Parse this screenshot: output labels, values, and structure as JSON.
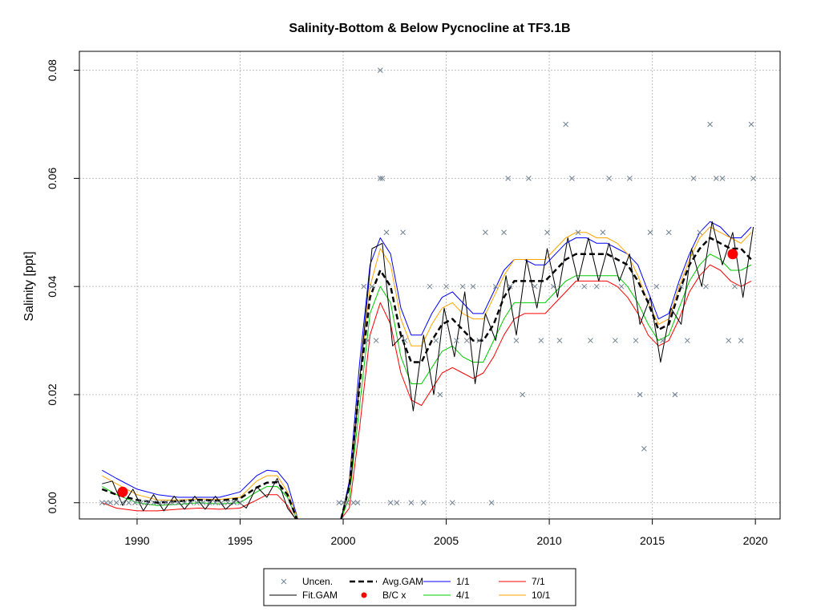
{
  "chart_data": {
    "type": "line",
    "title": "Salinity-Bottom & Below Pycnocline at TF3.1B",
    "ylabel": "Salinity [ppt]",
    "xlabel": "",
    "xlim": [
      1987.2,
      2021.2
    ],
    "ylim": [
      -0.003,
      0.0835
    ],
    "x_ticks": [
      1990,
      1995,
      2000,
      2005,
      2010,
      2015,
      2020
    ],
    "y_ticks": [
      0.0,
      0.02,
      0.04,
      0.06,
      0.08
    ],
    "y_tick_labels": [
      "0.00",
      "0.02",
      "0.04",
      "0.06",
      "0.08"
    ],
    "grid": true,
    "legend_position": "bottom-center",
    "legend": [
      {
        "label": "Uncen.",
        "symbol": "x",
        "color": "#708090"
      },
      {
        "label": "Avg.GAM",
        "symbol": "dashed-line",
        "color": "#000000"
      },
      {
        "label": "1/1",
        "symbol": "line",
        "color": "#0000ff"
      },
      {
        "label": "7/1",
        "symbol": "line",
        "color": "#ff0000"
      },
      {
        "label": "Fit.GAM",
        "symbol": "line",
        "color": "#000000"
      },
      {
        "label": "B/C x",
        "symbol": "dot",
        "color": "#ff0000"
      },
      {
        "label": "4/1",
        "symbol": "line",
        "color": "#00cc00"
      },
      {
        "label": "10/1",
        "symbol": "line",
        "color": "#ffa500"
      }
    ],
    "series": [
      {
        "name": "Avg.GAM",
        "color": "#000000",
        "x": [
          1988.3,
          1989.0,
          1990.0,
          1991.0,
          1992.0,
          1993.0,
          1994.0,
          1995.0,
          1995.8,
          1996.3,
          1996.8,
          1997.3,
          1997.8,
          1999.9,
          2000.3,
          2000.8,
          2001.3,
          2001.8,
          2002.3,
          2002.8,
          2003.3,
          2003.8,
          2004.3,
          2004.8,
          2005.3,
          2005.8,
          2006.3,
          2006.8,
          2007.3,
          2007.8,
          2008.3,
          2008.8,
          2009.3,
          2009.8,
          2010.3,
          2010.8,
          2011.3,
          2011.8,
          2012.3,
          2012.8,
          2013.3,
          2013.8,
          2014.3,
          2014.8,
          2015.3,
          2015.8,
          2016.3,
          2016.8,
          2017.3,
          2017.8,
          2018.3,
          2018.8,
          2019.3,
          2019.8
        ],
        "y": [
          0.0025,
          0.0015,
          0.0005,
          0.0,
          0.0003,
          0.0005,
          0.0004,
          0.0008,
          0.0028,
          0.0037,
          0.0038,
          0.0015,
          -0.0035,
          -0.003,
          0.003,
          0.022,
          0.038,
          0.043,
          0.04,
          0.031,
          0.026,
          0.026,
          0.03,
          0.033,
          0.034,
          0.032,
          0.03,
          0.03,
          0.033,
          0.038,
          0.041,
          0.041,
          0.041,
          0.041,
          0.043,
          0.045,
          0.046,
          0.046,
          0.046,
          0.046,
          0.045,
          0.044,
          0.041,
          0.037,
          0.032,
          0.033,
          0.039,
          0.044,
          0.047,
          0.049,
          0.048,
          0.047,
          0.047,
          0.045
        ]
      },
      {
        "name": "Fit.GAM",
        "color": "#000000",
        "x": [
          1988.3,
          1988.8,
          1989.3,
          1989.8,
          1990.3,
          1990.8,
          1991.3,
          1991.8,
          1992.3,
          1992.8,
          1993.3,
          1993.8,
          1994.3,
          1994.8,
          1995.3,
          1995.8,
          1996.3,
          1996.8,
          1997.3,
          1997.8,
          1999.9,
          2000.4,
          2000.9,
          2001.4,
          2001.9,
          2002.4,
          2002.9,
          2003.4,
          2003.9,
          2004.4,
          2004.9,
          2005.4,
          2005.9,
          2006.4,
          2006.9,
          2007.4,
          2007.9,
          2008.4,
          2008.9,
          2009.4,
          2009.9,
          2010.4,
          2010.9,
          2011.4,
          2011.9,
          2012.4,
          2012.9,
          2013.4,
          2013.9,
          2014.4,
          2014.9,
          2015.4,
          2015.9,
          2016.4,
          2016.9,
          2017.4,
          2017.9,
          2018.4,
          2018.9,
          2019.4,
          2019.9
        ],
        "y": [
          0.0035,
          0.004,
          -0.0005,
          0.0025,
          -0.0015,
          0.0015,
          -0.0015,
          0.0012,
          -0.0012,
          0.0012,
          -0.0012,
          0.0012,
          -0.0012,
          0.0005,
          -0.001,
          0.003,
          0.001,
          0.0045,
          -0.001,
          -0.0035,
          -0.003,
          0.005,
          0.027,
          0.047,
          0.048,
          0.029,
          0.031,
          0.017,
          0.031,
          0.02,
          0.036,
          0.027,
          0.039,
          0.022,
          0.035,
          0.03,
          0.042,
          0.031,
          0.045,
          0.036,
          0.047,
          0.038,
          0.049,
          0.041,
          0.049,
          0.041,
          0.048,
          0.041,
          0.046,
          0.033,
          0.038,
          0.026,
          0.036,
          0.033,
          0.047,
          0.04,
          0.052,
          0.044,
          0.05,
          0.038,
          0.051
        ]
      },
      {
        "name": "1/1",
        "color": "#0000ff",
        "x": [
          1988.3,
          1989.0,
          1990.0,
          1991.0,
          1992.0,
          1993.0,
          1994.0,
          1995.0,
          1995.8,
          1996.3,
          1996.8,
          1997.3,
          1997.8,
          1999.9,
          2000.3,
          2000.8,
          2001.3,
          2001.8,
          2002.3,
          2002.8,
          2003.3,
          2003.8,
          2004.3,
          2004.8,
          2005.3,
          2005.8,
          2006.3,
          2006.8,
          2007.3,
          2007.8,
          2008.3,
          2008.8,
          2009.3,
          2009.8,
          2010.3,
          2010.8,
          2011.3,
          2011.8,
          2012.3,
          2012.8,
          2013.3,
          2013.8,
          2014.3,
          2014.8,
          2015.3,
          2015.8,
          2016.3,
          2016.8,
          2017.3,
          2017.8,
          2018.3,
          2018.8,
          2019.3,
          2019.8
        ],
        "y": [
          0.006,
          0.0045,
          0.0025,
          0.0015,
          0.001,
          0.001,
          0.001,
          0.002,
          0.005,
          0.006,
          0.0058,
          0.0035,
          -0.003,
          -0.003,
          0.004,
          0.026,
          0.044,
          0.049,
          0.046,
          0.036,
          0.031,
          0.031,
          0.035,
          0.038,
          0.039,
          0.037,
          0.035,
          0.035,
          0.039,
          0.043,
          0.045,
          0.045,
          0.044,
          0.044,
          0.046,
          0.048,
          0.049,
          0.049,
          0.048,
          0.048,
          0.047,
          0.046,
          0.044,
          0.039,
          0.034,
          0.035,
          0.041,
          0.046,
          0.05,
          0.052,
          0.051,
          0.049,
          0.049,
          0.051
        ]
      },
      {
        "name": "4/1",
        "color": "#00cc00",
        "x": [
          1988.3,
          1989.0,
          1990.0,
          1991.0,
          1992.0,
          1993.0,
          1994.0,
          1995.0,
          1995.8,
          1996.3,
          1996.8,
          1997.3,
          1997.8,
          1999.9,
          2000.3,
          2000.8,
          2001.3,
          2001.8,
          2002.3,
          2002.8,
          2003.3,
          2003.8,
          2004.3,
          2004.8,
          2005.3,
          2005.8,
          2006.3,
          2006.8,
          2007.3,
          2007.8,
          2008.3,
          2008.8,
          2009.3,
          2009.8,
          2010.3,
          2010.8,
          2011.3,
          2011.8,
          2012.3,
          2012.8,
          2013.3,
          2013.8,
          2014.3,
          2014.8,
          2015.3,
          2015.8,
          2016.3,
          2016.8,
          2017.3,
          2017.8,
          2018.3,
          2018.8,
          2019.3,
          2019.8
        ],
        "y": [
          0.003,
          0.0015,
          0.0,
          -0.0005,
          -0.0003,
          0.0,
          -0.0002,
          0.0,
          0.002,
          0.003,
          0.003,
          0.001,
          -0.0035,
          -0.003,
          0.001,
          0.018,
          0.035,
          0.04,
          0.037,
          0.027,
          0.022,
          0.022,
          0.025,
          0.028,
          0.029,
          0.027,
          0.026,
          0.026,
          0.03,
          0.034,
          0.037,
          0.037,
          0.037,
          0.037,
          0.039,
          0.041,
          0.042,
          0.042,
          0.042,
          0.042,
          0.042,
          0.04,
          0.037,
          0.033,
          0.03,
          0.031,
          0.036,
          0.041,
          0.044,
          0.046,
          0.045,
          0.043,
          0.043,
          0.044
        ]
      },
      {
        "name": "7/1",
        "color": "#ff0000",
        "x": [
          1988.3,
          1989.0,
          1990.0,
          1991.0,
          1992.0,
          1993.0,
          1994.0,
          1995.0,
          1995.8,
          1996.3,
          1996.8,
          1997.3,
          1997.8,
          1999.9,
          2000.3,
          2000.8,
          2001.3,
          2001.8,
          2002.3,
          2002.8,
          2003.3,
          2003.8,
          2004.3,
          2004.8,
          2005.3,
          2005.8,
          2006.3,
          2006.8,
          2007.3,
          2007.8,
          2008.3,
          2008.8,
          2009.3,
          2009.8,
          2010.3,
          2010.8,
          2011.3,
          2011.8,
          2012.3,
          2012.8,
          2013.3,
          2013.8,
          2014.3,
          2014.8,
          2015.3,
          2015.8,
          2016.3,
          2016.8,
          2017.3,
          2017.8,
          2018.3,
          2018.8,
          2019.3,
          2019.8
        ],
        "y": [
          0.0,
          -0.001,
          -0.0015,
          -0.0015,
          -0.0012,
          -0.001,
          -0.0012,
          -0.001,
          0.0005,
          0.0015,
          0.0015,
          -0.0005,
          -0.0038,
          -0.003,
          -0.001,
          0.014,
          0.031,
          0.037,
          0.033,
          0.024,
          0.019,
          0.018,
          0.021,
          0.024,
          0.025,
          0.024,
          0.023,
          0.024,
          0.027,
          0.031,
          0.034,
          0.035,
          0.035,
          0.035,
          0.037,
          0.039,
          0.041,
          0.041,
          0.041,
          0.041,
          0.04,
          0.038,
          0.035,
          0.031,
          0.029,
          0.03,
          0.034,
          0.039,
          0.042,
          0.044,
          0.043,
          0.041,
          0.04,
          0.041
        ]
      },
      {
        "name": "10/1",
        "color": "#ffa500",
        "x": [
          1988.3,
          1989.0,
          1990.0,
          1991.0,
          1992.0,
          1993.0,
          1994.0,
          1995.0,
          1995.8,
          1996.3,
          1996.8,
          1997.3,
          1997.8,
          1999.9,
          2000.3,
          2000.8,
          2001.3,
          2001.8,
          2002.3,
          2002.8,
          2003.3,
          2003.8,
          2004.3,
          2004.8,
          2005.3,
          2005.8,
          2006.3,
          2006.8,
          2007.3,
          2007.8,
          2008.3,
          2008.8,
          2009.3,
          2009.8,
          2010.3,
          2010.8,
          2011.3,
          2011.8,
          2012.3,
          2012.8,
          2013.3,
          2013.8,
          2014.3,
          2014.8,
          2015.3,
          2015.8,
          2016.3,
          2016.8,
          2017.3,
          2017.8,
          2018.3,
          2018.8,
          2019.3,
          2019.8
        ],
        "y": [
          0.005,
          0.0035,
          0.0015,
          0.0005,
          0.0005,
          0.0007,
          0.0006,
          0.001,
          0.004,
          0.005,
          0.005,
          0.002,
          -0.003,
          -0.003,
          0.003,
          0.023,
          0.04,
          0.047,
          0.044,
          0.034,
          0.029,
          0.029,
          0.033,
          0.036,
          0.037,
          0.035,
          0.034,
          0.034,
          0.038,
          0.042,
          0.045,
          0.045,
          0.045,
          0.045,
          0.047,
          0.049,
          0.05,
          0.05,
          0.049,
          0.049,
          0.048,
          0.046,
          0.042,
          0.037,
          0.033,
          0.034,
          0.04,
          0.045,
          0.049,
          0.051,
          0.05,
          0.049,
          0.048,
          0.05
        ]
      }
    ],
    "uncensored_points": {
      "name": "Uncen.",
      "color": "#708090",
      "x": [
        1988.3,
        1988.5,
        1988.7,
        1989.0,
        1989.3,
        1989.6,
        1989.9,
        1990.2,
        1990.5,
        1990.8,
        1991.1,
        1991.4,
        1991.7,
        1992.0,
        1992.3,
        1992.6,
        1992.9,
        1993.2,
        1993.5,
        1993.8,
        1994.1,
        1994.4,
        1994.7,
        1995.0,
        1999.8,
        2000.0,
        2000.2,
        2000.5,
        2000.7,
        2001.0,
        2001.2,
        2001.4,
        2001.6,
        2001.8,
        2001.8,
        2001.9,
        2002.1,
        2002.3,
        2002.6,
        2002.9,
        2003.0,
        2003.3,
        2003.9,
        2004.2,
        2004.5,
        2004.7,
        2005.0,
        2005.3,
        2005.5,
        2005.8,
        2006.0,
        2006.3,
        2006.6,
        2006.9,
        2007.2,
        2007.4,
        2007.8,
        2008.0,
        2008.1,
        2008.4,
        2008.7,
        2009.0,
        2009.3,
        2009.6,
        2009.9,
        2010.2,
        2010.5,
        2010.8,
        2011.1,
        2011.4,
        2011.7,
        2012.0,
        2012.3,
        2012.6,
        2012.9,
        2013.2,
        2013.5,
        2013.9,
        2014.2,
        2014.4,
        2014.6,
        2014.9,
        2015.2,
        2015.5,
        2015.8,
        2016.1,
        2016.4,
        2016.7,
        2017.0,
        2017.3,
        2017.6,
        2017.8,
        2018.1,
        2018.4,
        2018.7,
        2019.0,
        2019.3,
        2019.8,
        2019.9
      ],
      "y": [
        0.0,
        0.0,
        0.0,
        0.0,
        0.0,
        0.0,
        0.0,
        0.0,
        0.0,
        0.0,
        0.0,
        0.0,
        0.0,
        0.0,
        0.0,
        0.0,
        0.0,
        0.0,
        0.0,
        0.0,
        0.0,
        0.0,
        0.0,
        0.0,
        0.0,
        0.0,
        0.0,
        0.0,
        0.0,
        0.04,
        0.03,
        0.04,
        0.03,
        0.06,
        0.08,
        0.06,
        0.05,
        0.0,
        0.0,
        0.05,
        0.03,
        0.0,
        0.0,
        0.04,
        0.03,
        0.02,
        0.04,
        0.0,
        0.03,
        0.04,
        0.03,
        0.04,
        0.03,
        0.05,
        0.0,
        0.04,
        0.05,
        0.06,
        0.04,
        0.03,
        0.02,
        0.06,
        0.04,
        0.03,
        0.05,
        0.04,
        0.03,
        0.07,
        0.06,
        0.05,
        0.04,
        0.03,
        0.04,
        0.05,
        0.06,
        0.03,
        0.04,
        0.06,
        0.03,
        0.02,
        0.01,
        0.05,
        0.04,
        0.03,
        0.05,
        0.02,
        0.04,
        0.03,
        0.06,
        0.05,
        0.04,
        0.07,
        0.06,
        0.06,
        0.03,
        0.04,
        0.03,
        0.07,
        0.06
      ]
    },
    "bc_points": {
      "name": "B/C x",
      "color": "#ff0000",
      "x": [
        1989.3,
        2018.9
      ],
      "y": [
        0.002,
        0.046
      ]
    }
  }
}
